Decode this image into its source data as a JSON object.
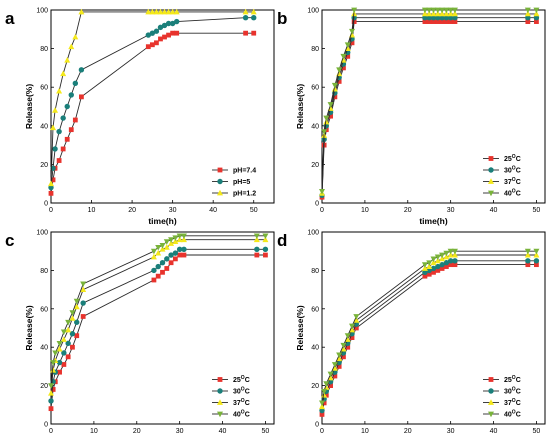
{
  "colors": {
    "red": "#e8332d",
    "teal": "#1a7f7a",
    "yellow": "#f4e81a",
    "green": "#79b33a",
    "black": "#222222"
  },
  "chart_data": [
    {
      "label": "a",
      "type": "line",
      "xlabel": "time(h)",
      "ylabel": "Release(%)",
      "xlim": [
        0,
        55
      ],
      "ylim": [
        0,
        100
      ],
      "xticks": [
        0,
        10,
        20,
        30,
        40,
        50
      ],
      "yticks": [
        0,
        20,
        40,
        60,
        80,
        100
      ],
      "legend": "bottom-right",
      "series": [
        {
          "name": "pH=7.4",
          "color": "#e8332d",
          "marker": "square",
          "x": [
            0,
            0.5,
            1,
            2,
            3,
            4,
            5,
            6,
            7.5,
            24,
            25,
            26,
            27,
            28,
            29,
            30,
            31,
            48,
            50
          ],
          "y": [
            5,
            12,
            18,
            22,
            28,
            33,
            38,
            43,
            55,
            81,
            82,
            83,
            85,
            86,
            87,
            88,
            88,
            88,
            88
          ]
        },
        {
          "name": "pH=5",
          "color": "#1a7f7a",
          "marker": "circle",
          "x": [
            0,
            0.5,
            1,
            2,
            3,
            4,
            5,
            6,
            7.5,
            24,
            25,
            26,
            27,
            28,
            29,
            30,
            31,
            48,
            50
          ],
          "y": [
            8,
            18,
            28,
            37,
            44,
            50,
            56,
            62,
            69,
            87,
            88,
            89,
            91,
            92,
            93,
            93,
            94,
            96,
            96
          ]
        },
        {
          "name": "pH=1.2",
          "color": "#f4e81a",
          "marker": "triangle-up",
          "x": [
            0,
            0.5,
            1,
            2,
            3,
            4,
            5,
            6,
            7.5,
            24,
            25,
            26,
            27,
            28,
            29,
            30,
            31,
            48,
            50
          ],
          "y": [
            10,
            39,
            48,
            58,
            67,
            74,
            81,
            86,
            99,
            99,
            99,
            99,
            99,
            99,
            99,
            99,
            99,
            99,
            99
          ]
        }
      ]
    },
    {
      "label": "b",
      "type": "line",
      "xlabel": "time(h)",
      "ylabel": "Release(%)",
      "xlim": [
        0,
        52
      ],
      "ylim": [
        0,
        100
      ],
      "xticks": [
        0,
        10,
        20,
        30,
        40,
        50
      ],
      "yticks": [
        0,
        20,
        40,
        60,
        80,
        100
      ],
      "legend": "bottom-right",
      "series": [
        {
          "name": "25°C",
          "color": "#e8332d",
          "marker": "square",
          "x": [
            0,
            0.5,
            1,
            2,
            3,
            4,
            5,
            6,
            7,
            7.5,
            24,
            25,
            26,
            27,
            28,
            29,
            30,
            31,
            48,
            50
          ],
          "y": [
            3,
            30,
            38,
            45,
            55,
            63,
            70,
            76,
            83,
            94,
            94,
            94,
            94,
            94,
            94,
            94,
            94,
            94,
            94,
            94
          ]
        },
        {
          "name": "30°C",
          "color": "#1a7f7a",
          "marker": "circle",
          "x": [
            0,
            0.5,
            1,
            2,
            3,
            4,
            5,
            6,
            7,
            7.5,
            24,
            25,
            26,
            27,
            28,
            29,
            30,
            31,
            48,
            50
          ],
          "y": [
            4,
            33,
            40,
            47,
            57,
            65,
            72,
            78,
            85,
            96,
            96,
            96,
            96,
            96,
            96,
            96,
            96,
            96,
            96,
            96
          ]
        },
        {
          "name": "37°C",
          "color": "#f4e81a",
          "marker": "triangle-up",
          "x": [
            0,
            0.5,
            1,
            2,
            3,
            4,
            5,
            6,
            7,
            7.5,
            24,
            25,
            26,
            27,
            28,
            29,
            30,
            31,
            48,
            50
          ],
          "y": [
            5,
            35,
            42,
            49,
            59,
            67,
            74,
            80,
            87,
            98,
            98,
            98,
            98,
            98,
            98,
            98,
            98,
            98,
            98,
            98
          ]
        },
        {
          "name": "40°C",
          "color": "#79b33a",
          "marker": "triangle-down",
          "x": [
            0,
            0.5,
            1,
            2,
            3,
            4,
            5,
            6,
            7,
            7.5,
            24,
            25,
            26,
            27,
            28,
            29,
            30,
            31,
            48,
            50
          ],
          "y": [
            6,
            37,
            44,
            51,
            61,
            69,
            76,
            82,
            89,
            100,
            100,
            100,
            100,
            100,
            100,
            100,
            100,
            100,
            100,
            100
          ]
        }
      ]
    },
    {
      "label": "c",
      "type": "line",
      "xlabel": "time(h)",
      "ylabel": "Release(%)",
      "xlim": [
        0,
        52
      ],
      "ylim": [
        0,
        100
      ],
      "xticks": [
        0,
        10,
        20,
        30,
        40,
        50
      ],
      "yticks": [
        0,
        20,
        40,
        60,
        80,
        100
      ],
      "legend": "bottom-right",
      "series": [
        {
          "name": "25°C",
          "color": "#e8332d",
          "marker": "square",
          "x": [
            0,
            0.5,
            1,
            2,
            3,
            4,
            5,
            6,
            7.5,
            24,
            25,
            26,
            27,
            28,
            29,
            30,
            31,
            48,
            50
          ],
          "y": [
            8,
            18,
            22,
            27,
            31,
            35,
            40,
            46,
            56,
            75,
            77,
            79,
            81,
            84,
            86,
            88,
            88,
            88,
            88
          ]
        },
        {
          "name": "30°C",
          "color": "#1a7f7a",
          "marker": "circle",
          "x": [
            0,
            0.5,
            1,
            2,
            3,
            4,
            5,
            6,
            7.5,
            24,
            25,
            26,
            27,
            28,
            29,
            30,
            31,
            48,
            50
          ],
          "y": [
            12,
            22,
            27,
            32,
            37,
            42,
            47,
            53,
            63,
            80,
            82,
            84,
            86,
            88,
            89,
            91,
            91,
            91,
            91
          ]
        },
        {
          "name": "37°C",
          "color": "#f4e81a",
          "marker": "triangle-up",
          "x": [
            0,
            0.5,
            1,
            2,
            3,
            4,
            5,
            6,
            7.5,
            24,
            25,
            26,
            27,
            28,
            29,
            30,
            31,
            48,
            50
          ],
          "y": [
            16,
            28,
            33,
            39,
            44,
            49,
            55,
            61,
            70,
            87,
            89,
            91,
            92,
            94,
            95,
            96,
            96,
            96,
            96
          ]
        },
        {
          "name": "40°C",
          "color": "#79b33a",
          "marker": "triangle-down",
          "x": [
            0,
            0.5,
            1,
            2,
            3,
            4,
            5,
            6,
            7.5,
            24,
            25,
            26,
            27,
            28,
            29,
            30,
            31,
            48,
            50
          ],
          "y": [
            20,
            32,
            37,
            42,
            48,
            53,
            58,
            64,
            73,
            90,
            92,
            93,
            95,
            96,
            97,
            98,
            98,
            98,
            98
          ]
        }
      ]
    },
    {
      "label": "d",
      "type": "line",
      "xlabel": "time(h)",
      "ylabel": "Release(%)",
      "xlim": [
        0,
        52
      ],
      "ylim": [
        0,
        100
      ],
      "xticks": [
        0,
        10,
        20,
        30,
        40,
        50
      ],
      "yticks": [
        0,
        20,
        40,
        60,
        80,
        100
      ],
      "legend": "bottom-right",
      "series": [
        {
          "name": "25°C",
          "color": "#e8332d",
          "marker": "square",
          "x": [
            0,
            0.5,
            1,
            2,
            3,
            4,
            5,
            6,
            7,
            8,
            24,
            25,
            26,
            27,
            28,
            29,
            30,
            31,
            48,
            50
          ],
          "y": [
            5,
            11,
            15,
            20,
            25,
            30,
            35,
            40,
            45,
            50,
            77,
            78,
            79,
            80,
            81,
            82,
            83,
            83,
            83,
            83
          ]
        },
        {
          "name": "30°C",
          "color": "#1a7f7a",
          "marker": "circle",
          "x": [
            0,
            0.5,
            1,
            2,
            3,
            4,
            5,
            6,
            7,
            8,
            24,
            25,
            26,
            27,
            28,
            29,
            30,
            31,
            48,
            50
          ],
          "y": [
            7,
            13,
            17,
            22,
            27,
            32,
            37,
            42,
            47,
            52,
            79,
            80,
            81,
            82,
            83,
            84,
            85,
            85,
            85,
            85
          ]
        },
        {
          "name": "37°C",
          "color": "#f4e81a",
          "marker": "triangle-up",
          "x": [
            0,
            0.5,
            1,
            2,
            3,
            4,
            5,
            6,
            7,
            8,
            24,
            25,
            26,
            27,
            28,
            29,
            30,
            31,
            48,
            50
          ],
          "y": [
            9,
            15,
            19,
            24,
            29,
            34,
            39,
            44,
            49,
            54,
            81,
            82,
            84,
            85,
            86,
            87,
            88,
            88,
            88,
            88
          ]
        },
        {
          "name": "40°C",
          "color": "#79b33a",
          "marker": "triangle-down",
          "x": [
            0,
            0.5,
            1,
            2,
            3,
            4,
            5,
            6,
            7,
            8,
            24,
            25,
            26,
            27,
            28,
            29,
            30,
            31,
            48,
            50
          ],
          "y": [
            11,
            17,
            21,
            26,
            31,
            36,
            41,
            46,
            51,
            56,
            83,
            84,
            86,
            87,
            88,
            89,
            90,
            90,
            90,
            90
          ]
        }
      ]
    }
  ]
}
